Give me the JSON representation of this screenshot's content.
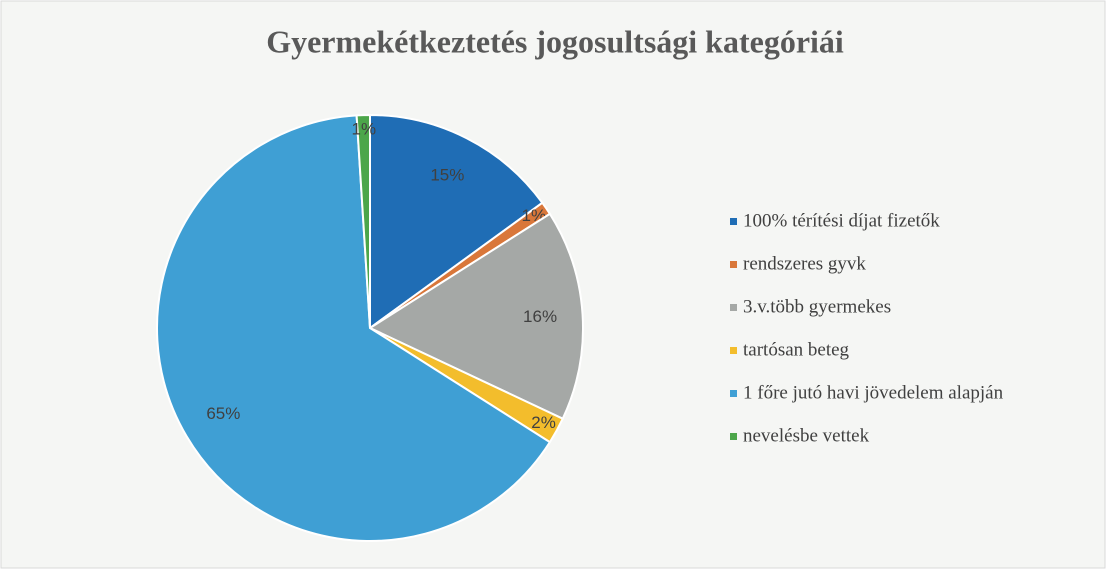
{
  "chart_data": {
    "type": "pie",
    "title": "Gyermekétkeztetés jogosultsági kategóriái",
    "categories": [
      "100% térítési díjat fizetők",
      "rendszeres gyvk",
      "3.v.több gyermekes",
      "tartósan beteg",
      "1 főre jutó havi jövedelem alapján",
      "nevelésbe vettek"
    ],
    "values": [
      15,
      1,
      16,
      2,
      65,
      1
    ],
    "value_labels": [
      "15%",
      "1%",
      "16%",
      "2%",
      "65%",
      "1%"
    ],
    "colors": [
      "#1f6db5",
      "#d9773a",
      "#a5a8a6",
      "#f3bd2c",
      "#3f9fd4",
      "#4ca64a"
    ],
    "legend": "right"
  }
}
